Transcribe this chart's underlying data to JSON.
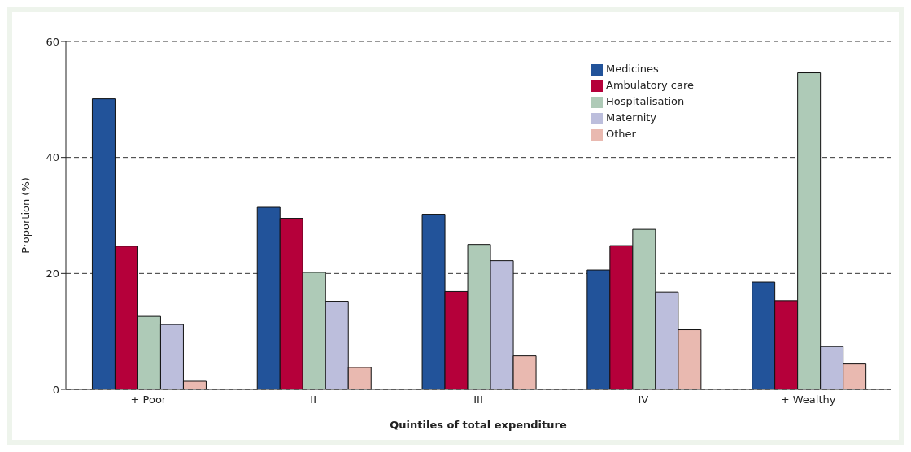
{
  "chart_data": {
    "type": "bar",
    "xlabel": "Quintiles of total expenditure",
    "ylabel": "Proportion (%)",
    "categories": [
      "+ Poor",
      "II",
      "III",
      "IV",
      "+ Wealthy"
    ],
    "series": [
      {
        "name": "Medicines",
        "color": "#22539a",
        "values": [
          50.1,
          31.4,
          30.2,
          20.6,
          18.5
        ]
      },
      {
        "name": "Ambulatory care",
        "color": "#b5003a",
        "values": [
          24.7,
          29.5,
          16.9,
          24.8,
          15.3
        ]
      },
      {
        "name": "Hospitalisation",
        "color": "#aecab7",
        "values": [
          12.6,
          20.2,
          25.0,
          27.6,
          54.6
        ]
      },
      {
        "name": "Maternity",
        "color": "#bcbedc",
        "values": [
          11.2,
          15.2,
          22.2,
          16.8,
          7.4
        ]
      },
      {
        "name": "Other",
        "color": "#e9b9b0",
        "values": [
          1.4,
          3.8,
          5.8,
          10.3,
          4.4
        ]
      }
    ],
    "ylim": [
      0,
      60
    ],
    "yticks": [
      0,
      20,
      40,
      60
    ],
    "grid": "y",
    "legend": "top right"
  }
}
